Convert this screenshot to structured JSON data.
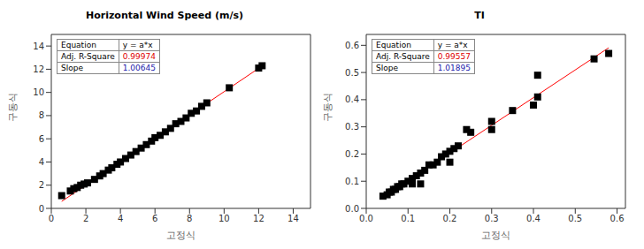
{
  "chart_data": [
    {
      "type": "scatter",
      "title": "Horizontal Wind Speed (m/s)",
      "x_label": "고정식",
      "y_label": "구동식",
      "xlim": [
        0,
        15
      ],
      "ylim": [
        0,
        15
      ],
      "xticks": [
        0,
        2,
        4,
        6,
        8,
        10,
        12,
        14
      ],
      "yticks": [
        0,
        2,
        4,
        6,
        8,
        10,
        12,
        14
      ],
      "color": "#000000",
      "marker": "square",
      "x": [
        0.6,
        1.1,
        1.3,
        1.5,
        1.7,
        1.9,
        2.1,
        2.5,
        2.8,
        3.0,
        3.3,
        3.5,
        3.8,
        4.0,
        4.3,
        4.6,
        4.9,
        5.2,
        5.5,
        5.8,
        6.0,
        6.3,
        6.6,
        6.9,
        7.2,
        7.5,
        7.8,
        8.1,
        8.4,
        8.7,
        9.0,
        10.3,
        12.0,
        12.2
      ],
      "y": [
        1.1,
        1.5,
        1.7,
        1.8,
        2.0,
        2.1,
        2.2,
        2.5,
        2.8,
        3.0,
        3.3,
        3.5,
        3.8,
        4.0,
        4.3,
        4.6,
        4.9,
        5.2,
        5.5,
        5.8,
        6.1,
        6.3,
        6.6,
        6.9,
        7.3,
        7.5,
        7.8,
        8.2,
        8.4,
        8.8,
        9.1,
        10.4,
        12.1,
        12.3
      ],
      "fit": {
        "color": "#ff0000",
        "equation_label": "Equation",
        "equation": "y = a*x",
        "r_square_label": "Adj. R-Square",
        "r_square": 0.99974,
        "slope_label": "Slope",
        "slope": 1.00645
      }
    },
    {
      "type": "scatter",
      "title": "TI",
      "x_label": "고정식",
      "y_label": "구동식",
      "xlim": [
        0,
        0.62
      ],
      "ylim": [
        0,
        0.64
      ],
      "xticks": [
        {
          "value": 0,
          "label": "0.0"
        },
        0.1,
        0.2,
        0.3,
        0.4,
        0.5,
        0.6
      ],
      "yticks": [
        {
          "value": 0,
          "label": "0.0"
        },
        0.1,
        0.2,
        0.3,
        0.4,
        0.5,
        0.6
      ],
      "color": "#000000",
      "marker": "square",
      "x": [
        0.04,
        0.05,
        0.055,
        0.06,
        0.065,
        0.07,
        0.075,
        0.08,
        0.085,
        0.09,
        0.1,
        0.11,
        0.12,
        0.13,
        0.14,
        0.15,
        0.16,
        0.17,
        0.18,
        0.19,
        0.2,
        0.11,
        0.13,
        0.2,
        0.21,
        0.22,
        0.24,
        0.25,
        0.3,
        0.3,
        0.35,
        0.4,
        0.41,
        0.41,
        0.545,
        0.58
      ],
      "y": [
        0.045,
        0.05,
        0.06,
        0.06,
        0.07,
        0.07,
        0.08,
        0.08,
        0.09,
        0.09,
        0.1,
        0.11,
        0.12,
        0.13,
        0.14,
        0.16,
        0.16,
        0.17,
        0.19,
        0.2,
        0.21,
        0.09,
        0.09,
        0.17,
        0.22,
        0.23,
        0.29,
        0.28,
        0.32,
        0.29,
        0.36,
        0.38,
        0.41,
        0.49,
        0.55,
        0.57
      ],
      "fit": {
        "color": "#ff0000",
        "equation_label": "Equation",
        "equation": "y = a*x",
        "r_square_label": "Adj. R-Square",
        "r_square": 0.99557,
        "slope_label": "Slope",
        "slope": 1.01895
      }
    }
  ]
}
